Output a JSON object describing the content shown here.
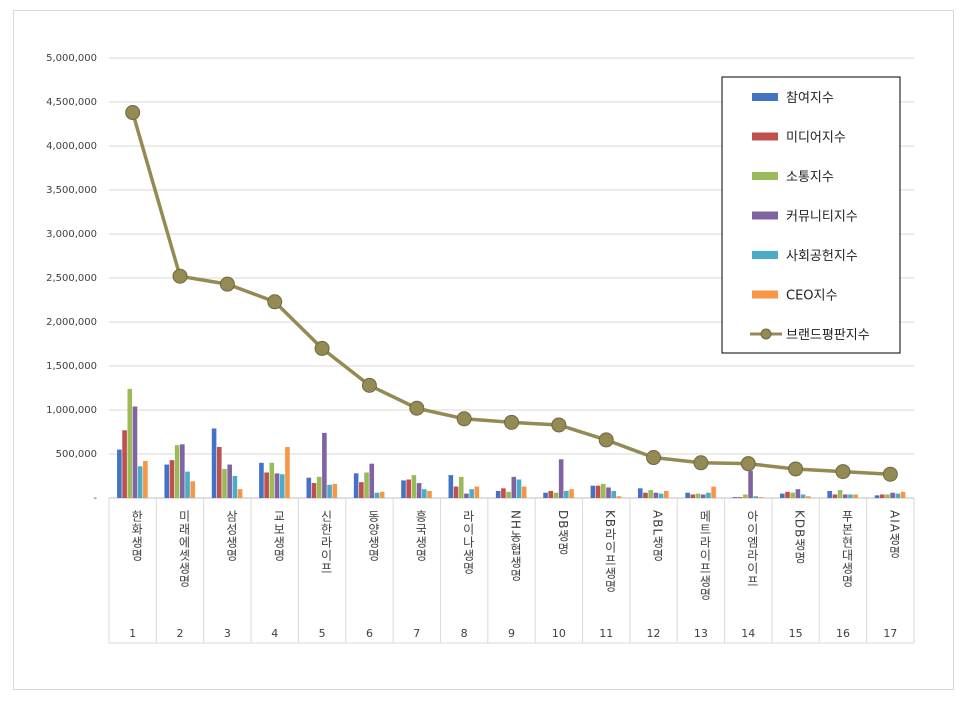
{
  "chart_data": {
    "type": "bar",
    "categories": [
      "한화생명",
      "미래에셋생명",
      "삼성생명",
      "교보생명",
      "신한라이프",
      "동양생명",
      "흥국생명",
      "라이나생명",
      "NH농협생명",
      "DB생명",
      "KB라이프생명",
      "ABL생명",
      "메트라이프생명",
      "아이엠라이프",
      "KDB생명",
      "푸본현대생명",
      "AIA생명"
    ],
    "ranks": [
      "1",
      "2",
      "3",
      "4",
      "5",
      "6",
      "7",
      "8",
      "9",
      "10",
      "11",
      "12",
      "13",
      "14",
      "15",
      "16",
      "17"
    ],
    "ylim": [
      0,
      5000000
    ],
    "yticks": [
      0,
      500000,
      1000000,
      1500000,
      2000000,
      2500000,
      3000000,
      3500000,
      4000000,
      4500000,
      5000000
    ],
    "ytick_labels": [
      "-",
      "500,000",
      "1,000,000",
      "1,500,000",
      "2,000,000",
      "2,500,000",
      "3,000,000",
      "3,500,000",
      "4,000,000",
      "4,500,000",
      "5,000,000"
    ],
    "grid": true,
    "legend_position": "top-right",
    "series": [
      {
        "name": "참여지수",
        "color": "#4472c4",
        "values": [
          550000,
          380000,
          790000,
          400000,
          230000,
          280000,
          200000,
          260000,
          80000,
          60000,
          140000,
          110000,
          60000,
          10000,
          50000,
          80000,
          30000
        ]
      },
      {
        "name": "미디어지수",
        "color": "#c0504d",
        "values": [
          770000,
          430000,
          580000,
          290000,
          170000,
          180000,
          210000,
          130000,
          110000,
          80000,
          140000,
          60000,
          40000,
          10000,
          70000,
          40000,
          40000
        ]
      },
      {
        "name": "소통지수",
        "color": "#9bbb59",
        "values": [
          1240000,
          600000,
          330000,
          400000,
          240000,
          290000,
          260000,
          240000,
          70000,
          60000,
          160000,
          90000,
          50000,
          40000,
          60000,
          90000,
          40000
        ]
      },
      {
        "name": "커뮤니티지수",
        "color": "#8064a2",
        "values": [
          1040000,
          610000,
          380000,
          280000,
          740000,
          390000,
          170000,
          50000,
          240000,
          440000,
          120000,
          60000,
          40000,
          310000,
          100000,
          40000,
          60000
        ]
      },
      {
        "name": "사회공헌지수",
        "color": "#4bacc6",
        "values": [
          360000,
          300000,
          250000,
          270000,
          150000,
          60000,
          100000,
          100000,
          210000,
          80000,
          80000,
          50000,
          60000,
          20000,
          40000,
          40000,
          50000
        ]
      },
      {
        "name": "CEO지수",
        "color": "#f79646",
        "values": [
          420000,
          190000,
          100000,
          580000,
          160000,
          70000,
          80000,
          130000,
          130000,
          100000,
          20000,
          80000,
          130000,
          10000,
          20000,
          40000,
          70000
        ]
      },
      {
        "name": "브랜드평판지수",
        "color": "#948a54",
        "type": "line",
        "values": [
          4380000,
          2520000,
          2430000,
          2230000,
          1700000,
          1280000,
          1020000,
          900000,
          860000,
          830000,
          660000,
          460000,
          400000,
          390000,
          330000,
          300000,
          270000
        ]
      }
    ]
  }
}
